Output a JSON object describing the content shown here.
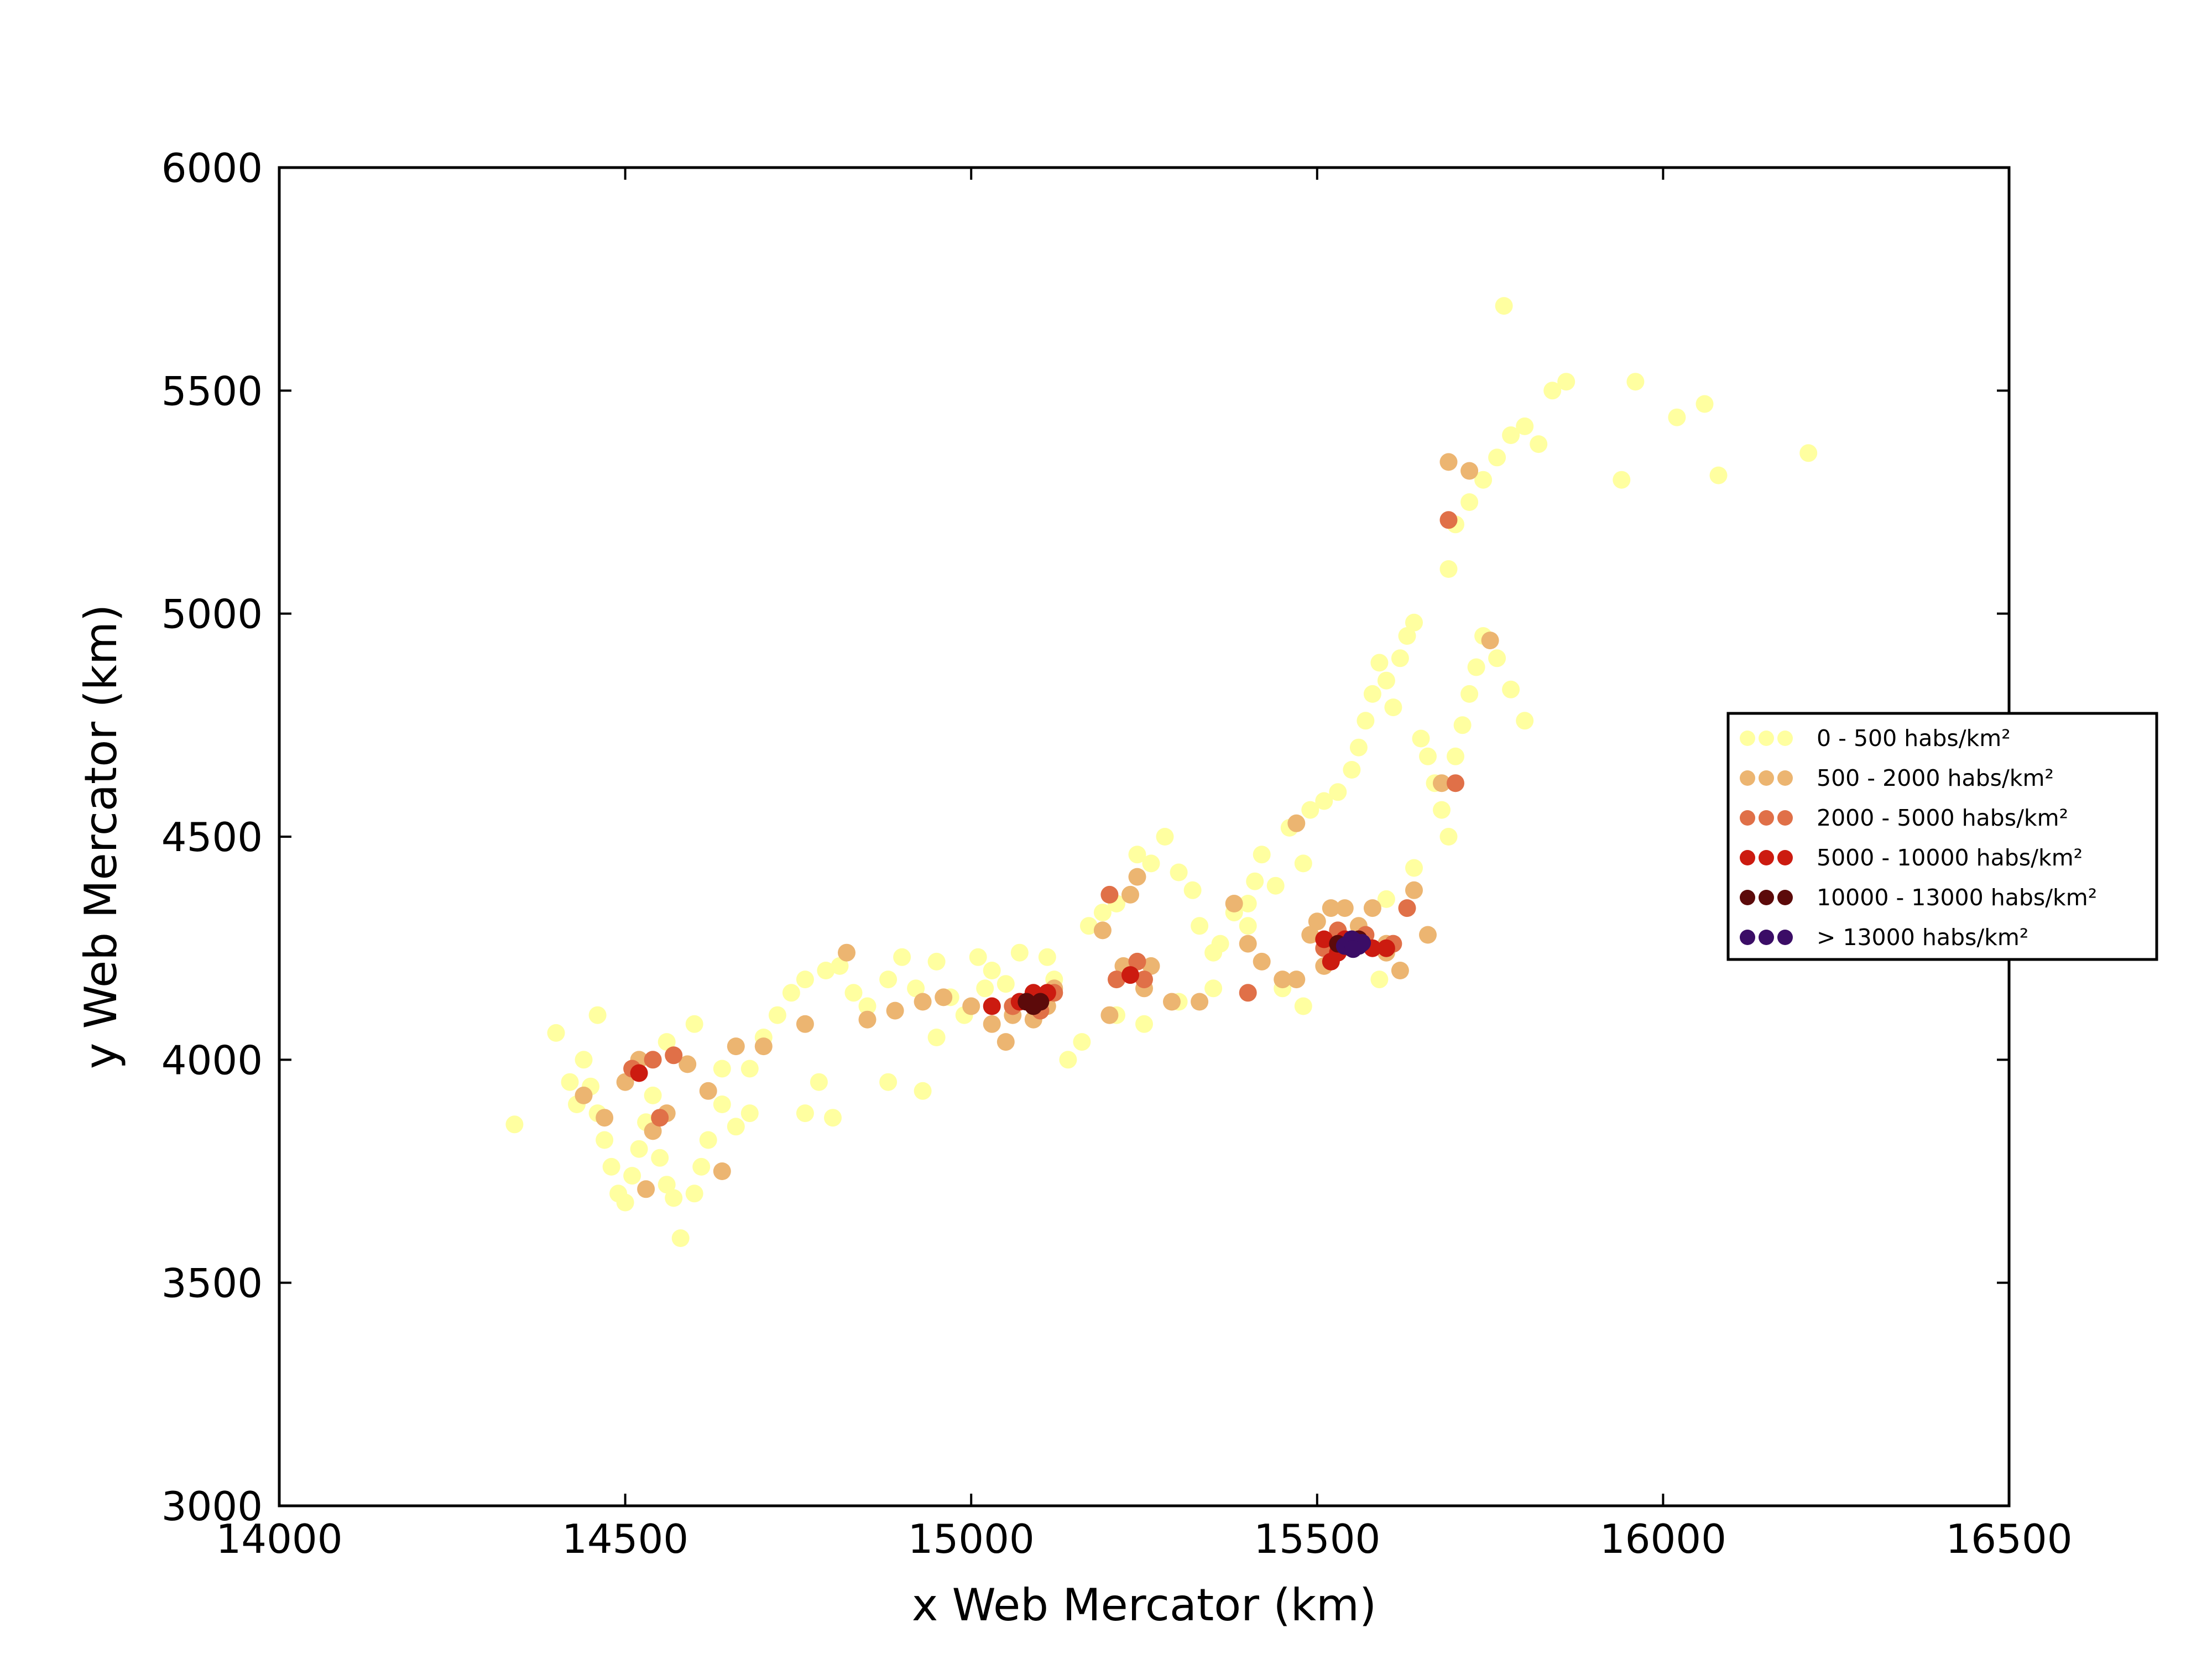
{
  "chart_data": {
    "type": "scatter",
    "title": "",
    "xlabel": "x Web Mercator (km)",
    "ylabel": "y Web Mercator (km)",
    "xlim": [
      14000,
      16500
    ],
    "ylim": [
      3000,
      6000
    ],
    "xticks": [
      "14000",
      "14500",
      "15000",
      "15500",
      "16000",
      "16500"
    ],
    "yticks": [
      "3000",
      "3500",
      "4000",
      "4500",
      "5000",
      "5500",
      "6000"
    ],
    "grid": false,
    "legend_position": "right",
    "series": [
      {
        "name": "0 - 500 habs/km²",
        "color": "#ffffa0",
        "points": [
          [
            14340,
            3855
          ],
          [
            14400,
            4060
          ],
          [
            14420,
            3950
          ],
          [
            14440,
            4000
          ],
          [
            14430,
            3900
          ],
          [
            14450,
            3940
          ],
          [
            14460,
            3880
          ],
          [
            14470,
            3820
          ],
          [
            14480,
            3760
          ],
          [
            14490,
            3700
          ],
          [
            14500,
            3680
          ],
          [
            14510,
            3740
          ],
          [
            14520,
            3800
          ],
          [
            14530,
            3860
          ],
          [
            14540,
            3920
          ],
          [
            14550,
            3780
          ],
          [
            14560,
            3720
          ],
          [
            14570,
            3690
          ],
          [
            14580,
            3600
          ],
          [
            14600,
            3700
          ],
          [
            14610,
            3760
          ],
          [
            14620,
            3820
          ],
          [
            14640,
            3900
          ],
          [
            14660,
            3850
          ],
          [
            14680,
            3980
          ],
          [
            14700,
            4050
          ],
          [
            14720,
            4100
          ],
          [
            14740,
            4150
          ],
          [
            14760,
            4180
          ],
          [
            14790,
            4200
          ],
          [
            14810,
            4210
          ],
          [
            14830,
            4150
          ],
          [
            14850,
            4120
          ],
          [
            14880,
            4180
          ],
          [
            14900,
            4230
          ],
          [
            14920,
            4160
          ],
          [
            14950,
            4220
          ],
          [
            14970,
            4140
          ],
          [
            14990,
            4100
          ],
          [
            15010,
            4230
          ],
          [
            15030,
            4200
          ],
          [
            15050,
            4170
          ],
          [
            15070,
            4240
          ],
          [
            15110,
            4230
          ],
          [
            15140,
            4000
          ],
          [
            15160,
            4040
          ],
          [
            15170,
            4300
          ],
          [
            15190,
            4330
          ],
          [
            15210,
            4350
          ],
          [
            15240,
            4460
          ],
          [
            15260,
            4440
          ],
          [
            15280,
            4500
          ],
          [
            15300,
            4420
          ],
          [
            15320,
            4380
          ],
          [
            15330,
            4300
          ],
          [
            15350,
            4240
          ],
          [
            15360,
            4260
          ],
          [
            15380,
            4330
          ],
          [
            15400,
            4350
          ],
          [
            15410,
            4400
          ],
          [
            15420,
            4460
          ],
          [
            15440,
            4390
          ],
          [
            15460,
            4520
          ],
          [
            15480,
            4440
          ],
          [
            15490,
            4560
          ],
          [
            15510,
            4580
          ],
          [
            15530,
            4600
          ],
          [
            15550,
            4650
          ],
          [
            15560,
            4700
          ],
          [
            15570,
            4760
          ],
          [
            15580,
            4820
          ],
          [
            15590,
            4890
          ],
          [
            15600,
            4850
          ],
          [
            15610,
            4790
          ],
          [
            15620,
            4900
          ],
          [
            15630,
            4950
          ],
          [
            15640,
            4980
          ],
          [
            15650,
            4720
          ],
          [
            15660,
            4680
          ],
          [
            15670,
            4620
          ],
          [
            15680,
            4560
          ],
          [
            15690,
            4500
          ],
          [
            15700,
            4680
          ],
          [
            15710,
            4750
          ],
          [
            15720,
            4820
          ],
          [
            15730,
            4880
          ],
          [
            15740,
            4950
          ],
          [
            15760,
            4900
          ],
          [
            15780,
            4830
          ],
          [
            15800,
            4760
          ],
          [
            15690,
            5100
          ],
          [
            15700,
            5200
          ],
          [
            15720,
            5250
          ],
          [
            15740,
            5300
          ],
          [
            15760,
            5350
          ],
          [
            15780,
            5400
          ],
          [
            15800,
            5420
          ],
          [
            15820,
            5380
          ],
          [
            15840,
            5500
          ],
          [
            15860,
            5520
          ],
          [
            15770,
            5690
          ],
          [
            15960,
            5520
          ],
          [
            16020,
            5440
          ],
          [
            16060,
            5470
          ],
          [
            16080,
            5310
          ],
          [
            15940,
            5300
          ],
          [
            16210,
            5360
          ],
          [
            15640,
            4430
          ],
          [
            15600,
            4360
          ],
          [
            15590,
            4180
          ],
          [
            15480,
            4120
          ],
          [
            14760,
            3880
          ],
          [
            14780,
            3950
          ],
          [
            14800,
            3870
          ],
          [
            14880,
            3950
          ],
          [
            14930,
            3930
          ],
          [
            14950,
            4050
          ],
          [
            15120,
            4180
          ],
          [
            15020,
            4160
          ],
          [
            15210,
            4100
          ],
          [
            15300,
            4130
          ],
          [
            15350,
            4160
          ],
          [
            15400,
            4300
          ],
          [
            15450,
            4160
          ],
          [
            15250,
            4080
          ],
          [
            14560,
            4040
          ],
          [
            14600,
            4080
          ],
          [
            14640,
            3980
          ],
          [
            14680,
            3880
          ],
          [
            14460,
            4100
          ]
        ]
      },
      {
        "name": "500 - 2000 habs/km²",
        "color": "#ecb571",
        "points": [
          [
            14440,
            3920
          ],
          [
            14470,
            3870
          ],
          [
            14500,
            3950
          ],
          [
            14520,
            4000
          ],
          [
            14540,
            3840
          ],
          [
            14560,
            3880
          ],
          [
            14590,
            3990
          ],
          [
            14620,
            3930
          ],
          [
            14640,
            3750
          ],
          [
            14530,
            3710
          ],
          [
            14660,
            4030
          ],
          [
            14700,
            4030
          ],
          [
            14760,
            4080
          ],
          [
            14820,
            4240
          ],
          [
            14850,
            4090
          ],
          [
            14890,
            4110
          ],
          [
            14930,
            4130
          ],
          [
            14960,
            4140
          ],
          [
            15000,
            4120
          ],
          [
            15030,
            4080
          ],
          [
            15050,
            4040
          ],
          [
            15060,
            4100
          ],
          [
            15120,
            4160
          ],
          [
            15190,
            4290
          ],
          [
            15220,
            4210
          ],
          [
            15230,
            4370
          ],
          [
            15250,
            4160
          ],
          [
            15260,
            4210
          ],
          [
            15290,
            4130
          ],
          [
            15330,
            4130
          ],
          [
            15380,
            4350
          ],
          [
            15400,
            4260
          ],
          [
            15420,
            4220
          ],
          [
            15450,
            4180
          ],
          [
            15470,
            4530
          ],
          [
            15490,
            4280
          ],
          [
            15500,
            4310
          ],
          [
            15520,
            4340
          ],
          [
            15540,
            4340
          ],
          [
            15560,
            4300
          ],
          [
            15580,
            4340
          ],
          [
            15600,
            4240
          ],
          [
            15620,
            4200
          ],
          [
            15640,
            4380
          ],
          [
            15660,
            4280
          ],
          [
            15680,
            4620
          ],
          [
            15690,
            5340
          ],
          [
            15720,
            5320
          ],
          [
            15750,
            4940
          ],
          [
            15600,
            4260
          ],
          [
            15470,
            4180
          ],
          [
            15510,
            4210
          ],
          [
            15090,
            4090
          ],
          [
            15080,
            4130
          ],
          [
            15110,
            4120
          ],
          [
            15200,
            4100
          ],
          [
            15240,
            4410
          ]
        ]
      },
      {
        "name": "2000 - 5000 habs/km²",
        "color": "#e07048",
        "points": [
          [
            14510,
            3980
          ],
          [
            14540,
            4000
          ],
          [
            14570,
            4010
          ],
          [
            14550,
            3870
          ],
          [
            15060,
            4120
          ],
          [
            15100,
            4110
          ],
          [
            15120,
            4150
          ],
          [
            15210,
            4180
          ],
          [
            15240,
            4220
          ],
          [
            15250,
            4180
          ],
          [
            15400,
            4150
          ],
          [
            15510,
            4250
          ],
          [
            15530,
            4290
          ],
          [
            15570,
            4280
          ],
          [
            15610,
            4260
          ],
          [
            15700,
            4620
          ],
          [
            15630,
            4340
          ],
          [
            15690,
            5210
          ],
          [
            15200,
            4370
          ]
        ]
      },
      {
        "name": "5000 - 10000 habs/km²",
        "color": "#cc1b10",
        "points": [
          [
            14520,
            3970
          ],
          [
            15030,
            4120
          ],
          [
            15070,
            4130
          ],
          [
            15090,
            4150
          ],
          [
            15110,
            4150
          ],
          [
            15230,
            4190
          ],
          [
            15520,
            4220
          ],
          [
            15540,
            4270
          ],
          [
            15580,
            4250
          ],
          [
            15600,
            4250
          ],
          [
            15530,
            4240
          ],
          [
            15510,
            4270
          ]
        ]
      },
      {
        "name": "10000 - 13000 habs/km²",
        "color": "#5c0a0a",
        "points": [
          [
            15080,
            4130
          ],
          [
            15090,
            4120
          ],
          [
            15100,
            4130
          ],
          [
            15530,
            4260
          ],
          [
            15560,
            4270
          ],
          [
            15550,
            4250
          ]
        ]
      },
      {
        "name": "> 13000 habs/km²",
        "color": "#3b0d66",
        "points": [
          [
            15545,
            4260
          ],
          [
            15555,
            4265
          ],
          [
            15560,
            4255
          ],
          [
            15550,
            4270
          ],
          [
            15540,
            4255
          ],
          [
            15565,
            4262
          ],
          [
            15552,
            4248
          ]
        ]
      }
    ]
  }
}
